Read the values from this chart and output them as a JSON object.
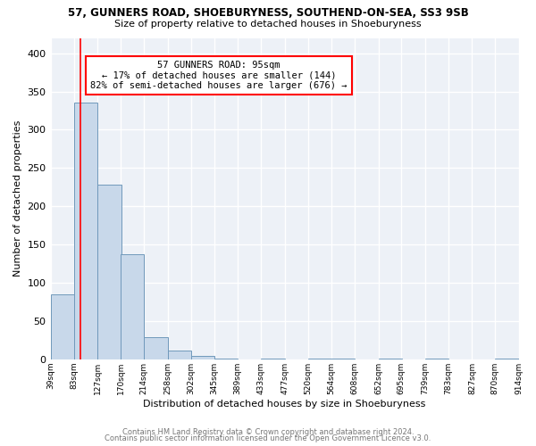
{
  "title": "57, GUNNERS ROAD, SHOEBURYNESS, SOUTHEND-ON-SEA, SS3 9SB",
  "subtitle": "Size of property relative to detached houses in Shoeburyness",
  "xlabel": "Distribution of detached houses by size in Shoeburyness",
  "ylabel": "Number of detached properties",
  "bin_edges": [
    39,
    83,
    127,
    170,
    214,
    258,
    302,
    345,
    389,
    433,
    477,
    520,
    564,
    608,
    652,
    695,
    739,
    783,
    827,
    870,
    914
  ],
  "bar_heights": [
    85,
    335,
    228,
    137,
    29,
    11,
    5,
    1,
    0,
    1,
    0,
    1,
    1,
    0,
    1,
    0,
    1,
    0,
    0,
    1
  ],
  "bar_color": "#c8d8ea",
  "bar_edge_color": "#7099bb",
  "red_line_x": 95,
  "annotation_text": "57 GUNNERS ROAD: 95sqm\n← 17% of detached houses are smaller (144)\n82% of semi-detached houses are larger (676) →",
  "annotation_box_color": "white",
  "annotation_box_edge_color": "red",
  "footer_line1": "Contains HM Land Registry data © Crown copyright and database right 2024.",
  "footer_line2": "Contains public sector information licensed under the Open Government Licence v3.0.",
  "background_color": "#edf1f7",
  "ylim": [
    0,
    420
  ],
  "yticks": [
    0,
    50,
    100,
    150,
    200,
    250,
    300,
    350,
    400
  ]
}
